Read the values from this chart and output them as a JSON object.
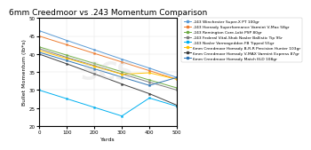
{
  "title": "6mm Creedmoor vs .243 Momentum Comparison",
  "xlabel": "Yards",
  "ylabel": "Bullet Momentum (lb*s)",
  "xlim": [
    0,
    500
  ],
  "ylim": [
    20,
    50
  ],
  "xticks": [
    0,
    100,
    200,
    300,
    400,
    500
  ],
  "yticks": [
    20,
    25,
    30,
    35,
    40,
    45,
    50
  ],
  "background_color": "#ffffff",
  "title_fontsize": 6.5,
  "label_fontsize": 4.5,
  "tick_fontsize": 4,
  "legend_fontsize": 3.2,
  "x": [
    0,
    100,
    200,
    300,
    400,
    500
  ],
  "series": [
    {
      "label": ".243 Winchester Super-X PT 100gr",
      "color": "#5b9bd5",
      "values": [
        46.5,
        43.8,
        41.2,
        38.6,
        36.1,
        33.5
      ]
    },
    {
      "label": ".243 Hornady Superformance Varmint V-Max 58gr",
      "color": "#ed7d31",
      "values": [
        45.0,
        42.6,
        40.2,
        37.8,
        35.4,
        33.0
      ]
    },
    {
      "label": ".243 Remington Core-Lokt PSP 80gr",
      "color": "#70ad47",
      "values": [
        42.0,
        39.7,
        37.4,
        35.1,
        32.8,
        30.6
      ]
    },
    {
      "label": ".243 Federal Vital-Shok Nosler Ballistic Tip 95r",
      "color": "#7f7f7f",
      "values": [
        41.5,
        39.1,
        36.8,
        34.5,
        32.2,
        30.0
      ]
    },
    {
      "label": ".243 Nosler Varmageddon FB Tipped 55gr",
      "color": "#00b0f0",
      "values": [
        30.0,
        27.6,
        25.2,
        22.8,
        27.8,
        25.5
      ]
    },
    {
      "label": "6mm Creedmoor Hornady B-R-R Precision Hunter 103gr",
      "color": "#ffc000",
      "values": [
        41.0,
        38.8,
        36.6,
        34.4,
        34.8,
        33.0
      ]
    },
    {
      "label": "6mm Creedmoor Hornady V-MAX Varmint Express 87gr",
      "color": "#404040",
      "values": [
        40.0,
        37.3,
        34.5,
        31.7,
        29.0,
        25.8
      ]
    },
    {
      "label": "6mm Creedmoor Hornady Match ELD 108gr",
      "color": "#2e75b6",
      "values": [
        40.5,
        38.2,
        35.9,
        33.6,
        31.3,
        33.5
      ]
    }
  ],
  "watermark_text": "SCS",
  "watermark_fontsize": 20,
  "watermark_color": "#cccccc",
  "watermark_alpha": 0.3
}
